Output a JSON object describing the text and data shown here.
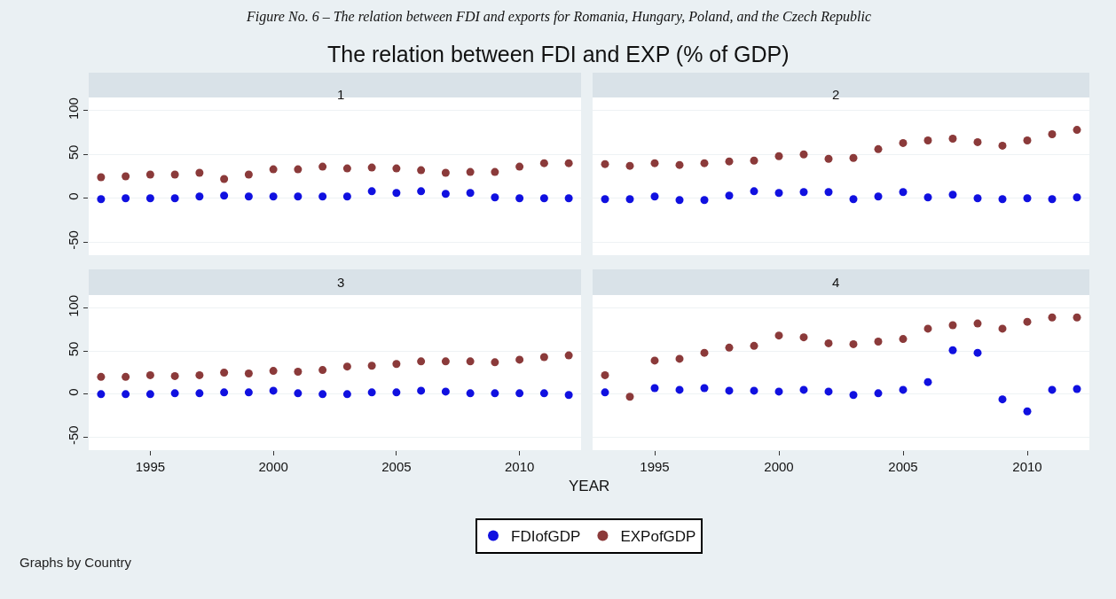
{
  "chart_data": [
    {
      "type": "scatter",
      "title": "1",
      "x": [
        1993,
        1994,
        1995,
        1996,
        1997,
        1998,
        1999,
        2000,
        2001,
        2002,
        2003,
        2004,
        2005,
        2006,
        2007,
        2008,
        2009,
        2010,
        2011,
        2012
      ],
      "series": [
        {
          "name": "FDIofGDP",
          "color": "#1010e0",
          "values": [
            -1,
            0,
            0,
            0,
            2,
            3,
            2,
            2,
            2,
            2,
            2,
            8,
            6,
            8,
            5,
            6,
            1,
            0,
            0,
            0
          ]
        },
        {
          "name": "EXPofGDP",
          "color": "#8b3a3a",
          "values": [
            24,
            25,
            27,
            27,
            29,
            22,
            27,
            33,
            33,
            36,
            34,
            35,
            34,
            32,
            29,
            30,
            30,
            36,
            40,
            40
          ]
        }
      ],
      "xlim": [
        1992.5,
        2012.5
      ],
      "xticks": [
        1995,
        2000,
        2005,
        2010
      ],
      "ylim": [
        -65,
        115
      ],
      "yticks": [
        -50,
        0,
        50,
        100
      ],
      "grid": "y",
      "marker": "circle",
      "legend": "bottom",
      "tick_labels": "y",
      "annotations": [
        "Figure No. 6 – The relation between FDI and exports for Romania, Hungary, Poland, and the Czech Republic",
        "The relation between FDI and EXP (% of GDP)",
        "Graphs by Country"
      ]
    },
    {
      "type": "scatter",
      "title": "2",
      "x": [
        1993,
        1994,
        1995,
        1996,
        1997,
        1998,
        1999,
        2000,
        2001,
        2002,
        2003,
        2004,
        2005,
        2006,
        2007,
        2008,
        2009,
        2010,
        2011,
        2012
      ],
      "series": [
        {
          "name": "FDIofGDP",
          "color": "#1010e0",
          "values": [
            -1,
            -1,
            2,
            -2,
            -2,
            3,
            8,
            6,
            7,
            7,
            -1,
            2,
            7,
            1,
            4,
            0,
            -1,
            0,
            -1,
            1
          ]
        },
        {
          "name": "EXPofGDP",
          "color": "#8b3a3a",
          "values": [
            39,
            37,
            40,
            38,
            40,
            42,
            43,
            48,
            50,
            45,
            46,
            56,
            63,
            66,
            68,
            64,
            60,
            66,
            73,
            78
          ]
        }
      ],
      "xlim": [
        1992.5,
        2012.5
      ],
      "xticks": [
        1995,
        2000,
        2005,
        2010
      ],
      "ylim": [
        -65,
        115
      ],
      "yticks": [
        -50,
        0,
        50,
        100
      ],
      "grid": "y",
      "marker": "circle",
      "legend": "bottom",
      "tick_labels": false
    },
    {
      "type": "scatter",
      "title": "3",
      "xlabel": "YEAR",
      "x": [
        1993,
        1994,
        1995,
        1996,
        1997,
        1998,
        1999,
        2000,
        2001,
        2002,
        2003,
        2004,
        2005,
        2006,
        2007,
        2008,
        2009,
        2010,
        2011,
        2012
      ],
      "series": [
        {
          "name": "FDIofGDP",
          "color": "#1010e0",
          "values": [
            0,
            0,
            0,
            1,
            1,
            2,
            2,
            4,
            1,
            0,
            0,
            2,
            2,
            4,
            3,
            1,
            1,
            1,
            1,
            -1
          ]
        },
        {
          "name": "EXPofGDP",
          "color": "#8b3a3a",
          "values": [
            20,
            20,
            22,
            21,
            22,
            25,
            24,
            27,
            26,
            28,
            32,
            33,
            35,
            38,
            38,
            38,
            37,
            40,
            43,
            45
          ]
        }
      ],
      "xlim": [
        1992.5,
        2012.5
      ],
      "xticks": [
        1995,
        2000,
        2005,
        2010
      ],
      "ylim": [
        -65,
        115
      ],
      "yticks": [
        -50,
        0,
        50,
        100
      ],
      "grid": "y",
      "marker": "circle",
      "legend": "bottom"
    },
    {
      "type": "scatter",
      "title": "4",
      "x": [
        1993,
        1994,
        1995,
        1996,
        1997,
        1998,
        1999,
        2000,
        2001,
        2002,
        2003,
        2004,
        2005,
        2006,
        2007,
        2008,
        2009,
        2010,
        2011,
        2012
      ],
      "series": [
        {
          "name": "FDIofGDP",
          "color": "#1010e0",
          "values": [
            2,
            null,
            7,
            5,
            7,
            4,
            4,
            3,
            5,
            3,
            -1,
            1,
            5,
            14,
            51,
            48,
            -6,
            -20,
            5,
            6
          ]
        },
        {
          "name": "EXPofGDP",
          "color": "#8b3a3a",
          "values": [
            22,
            -3,
            39,
            41,
            48,
            54,
            56,
            68,
            66,
            59,
            58,
            61,
            64,
            76,
            80,
            82,
            76,
            84,
            89,
            89
          ]
        }
      ],
      "xlim": [
        1992.5,
        2012.5
      ],
      "xticks": [
        1995,
        2000,
        2005,
        2010
      ],
      "ylim": [
        -65,
        115
      ],
      "yticks": [
        -50,
        0,
        50,
        100
      ],
      "grid": "y",
      "marker": "circle",
      "legend": "bottom",
      "tick_labels": "x"
    }
  ]
}
